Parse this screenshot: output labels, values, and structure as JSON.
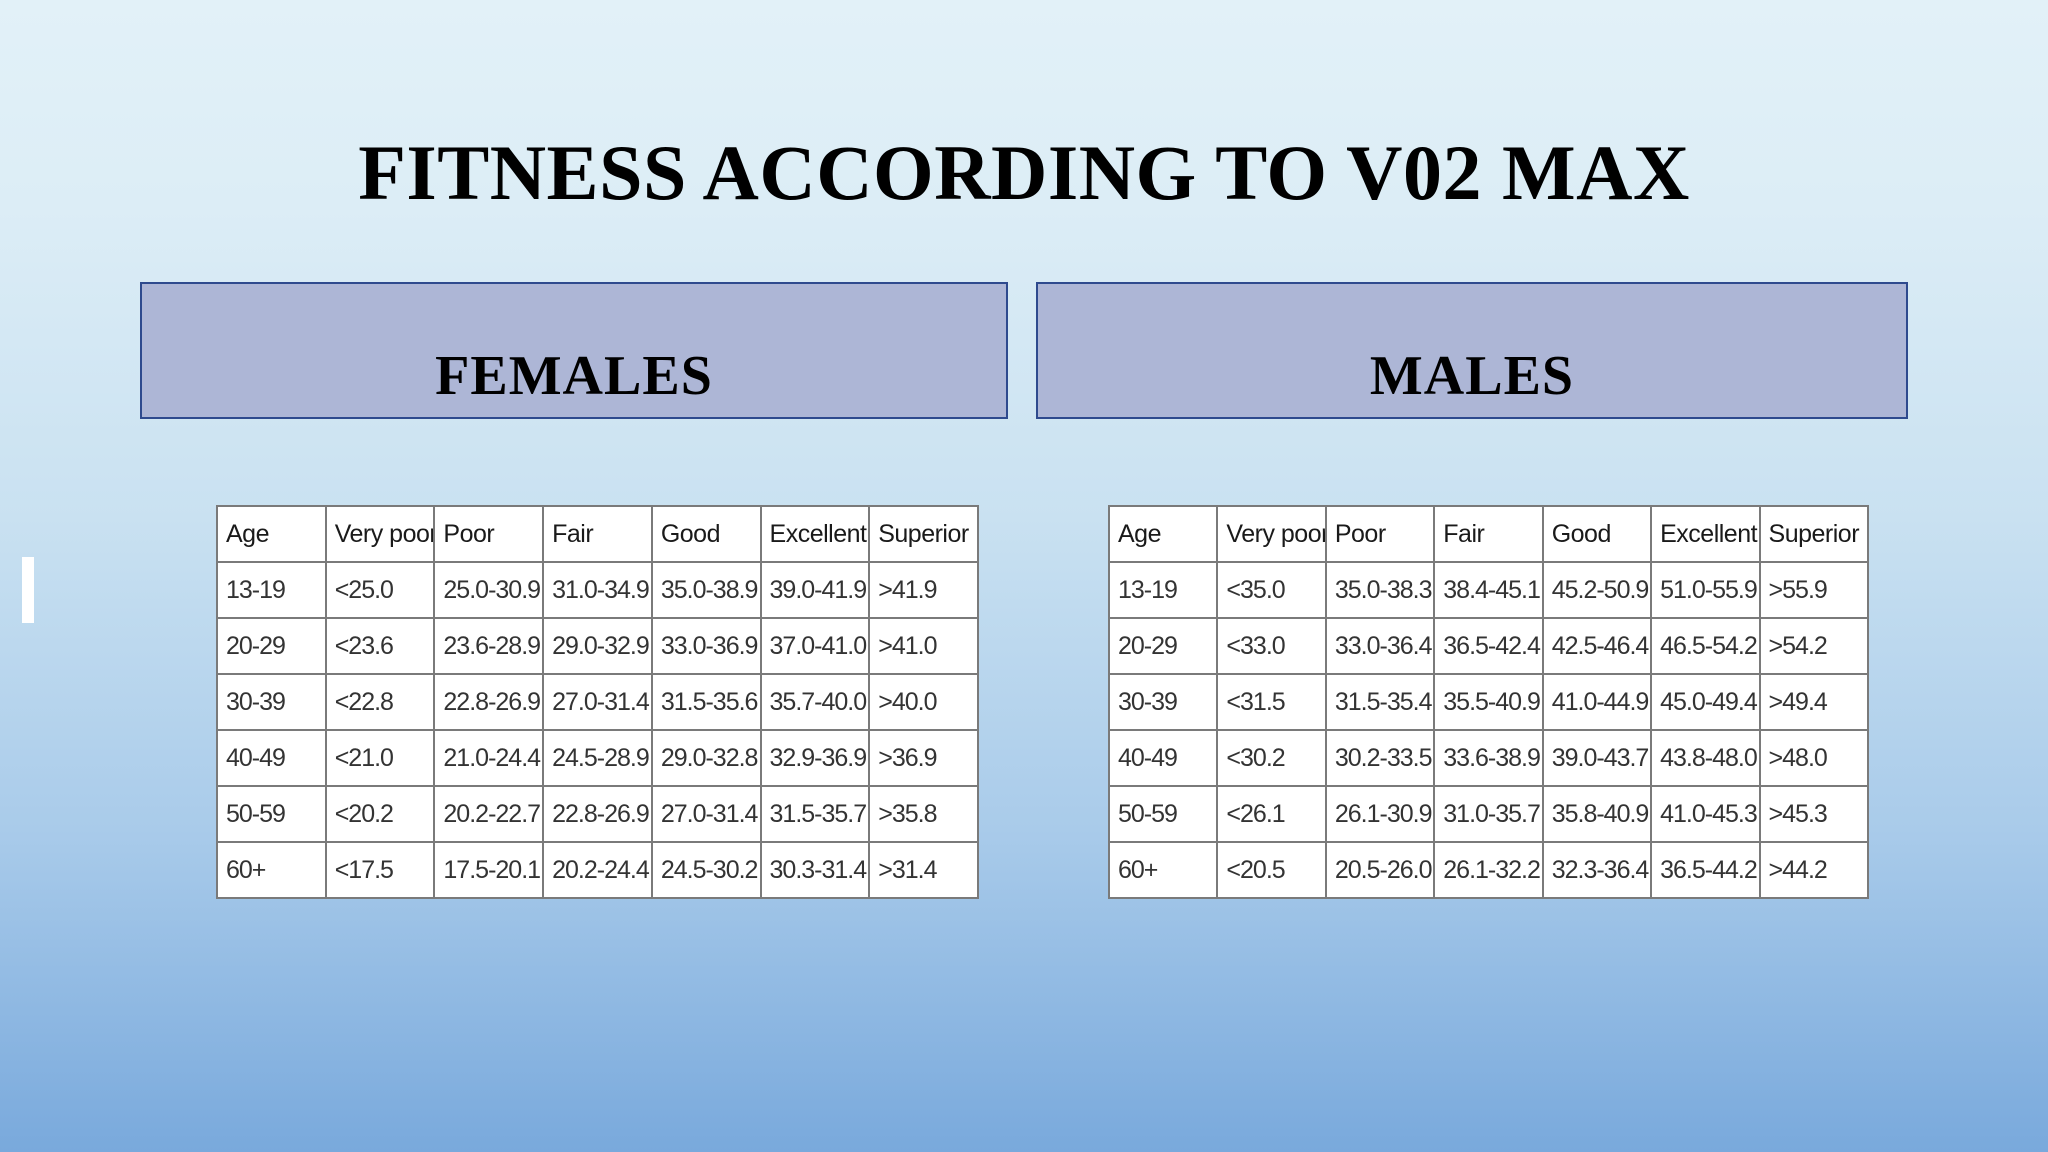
{
  "slide": {
    "title": "FITNESS ACCORDING TO V02 MAX"
  },
  "females": {
    "heading": "FEMALES",
    "columns": [
      "Age",
      "Very poor",
      "Poor",
      "Fair",
      "Good",
      "Excellent",
      "Superior"
    ],
    "rows": [
      [
        "13-19",
        "<25.0",
        "25.0-30.9",
        "31.0-34.9",
        "35.0-38.9",
        "39.0-41.9",
        ">41.9"
      ],
      [
        "20-29",
        "<23.6",
        "23.6-28.9",
        "29.0-32.9",
        "33.0-36.9",
        "37.0-41.0",
        ">41.0"
      ],
      [
        "30-39",
        "<22.8",
        "22.8-26.9",
        "27.0-31.4",
        "31.5-35.6",
        "35.7-40.0",
        ">40.0"
      ],
      [
        "40-49",
        "<21.0",
        "21.0-24.4",
        "24.5-28.9",
        "29.0-32.8",
        "32.9-36.9",
        ">36.9"
      ],
      [
        "50-59",
        "<20.2",
        "20.2-22.7",
        "22.8-26.9",
        "27.0-31.4",
        "31.5-35.7",
        ">35.8"
      ],
      [
        "60+",
        "<17.5",
        "17.5-20.1",
        "20.2-24.4",
        "24.5-30.2",
        "30.3-31.4",
        ">31.4"
      ]
    ]
  },
  "males": {
    "heading": "MALES",
    "columns": [
      "Age",
      "Very poor",
      "Poor",
      "Fair",
      "Good",
      "Excellent",
      "Superior"
    ],
    "rows": [
      [
        "13-19",
        "<35.0",
        "35.0-38.3",
        "38.4-45.1",
        "45.2-50.9",
        "51.0-55.9",
        ">55.9"
      ],
      [
        "20-29",
        "<33.0",
        "33.0-36.4",
        "36.5-42.4",
        "42.5-46.4",
        "46.5-54.2",
        ">54.2"
      ],
      [
        "30-39",
        "<31.5",
        "31.5-35.4",
        "35.5-40.9",
        "41.0-44.9",
        "45.0-49.4",
        ">49.4"
      ],
      [
        "40-49",
        "<30.2",
        "30.2-33.5",
        "33.6-38.9",
        "39.0-43.7",
        "43.8-48.0",
        ">48.0"
      ],
      [
        "50-59",
        "<26.1",
        "26.1-30.9",
        "31.0-35.7",
        "35.8-40.9",
        "41.0-45.3",
        ">45.3"
      ],
      [
        "60+",
        "<20.5",
        "20.5-26.0",
        "26.1-32.2",
        "32.3-36.4",
        "36.5-44.2",
        ">44.2"
      ]
    ]
  }
}
